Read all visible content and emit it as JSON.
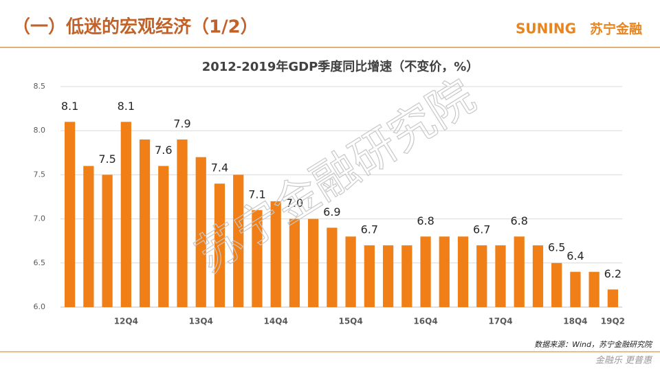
{
  "header": {
    "title": "（一）低迷的宏观经济（1/2）",
    "logo_latin": "SUNING",
    "logo_cn": "苏宁金融"
  },
  "watermark": "苏宁金融研究院",
  "footer": {
    "source": "数据来源：Wind，苏宁金融研究院",
    "slogan": "金融乐 更普惠"
  },
  "chart_data": {
    "type": "bar",
    "title": "2012-2019年GDP季度同比增速（不变价，%）",
    "categories": [
      null,
      null,
      null,
      "12Q4",
      null,
      null,
      null,
      "13Q4",
      null,
      null,
      null,
      "14Q4",
      null,
      null,
      null,
      "15Q4",
      null,
      null,
      null,
      "16Q4",
      null,
      null,
      null,
      "17Q4",
      null,
      null,
      null,
      "18Q4",
      null,
      "19Q2"
    ],
    "values": [
      8.1,
      7.6,
      7.5,
      8.1,
      7.9,
      7.6,
      7.9,
      7.7,
      7.4,
      7.5,
      7.1,
      7.2,
      7.0,
      7.0,
      6.9,
      6.8,
      6.7,
      6.7,
      6.7,
      6.8,
      6.8,
      6.8,
      6.7,
      6.7,
      6.8,
      6.7,
      6.5,
      6.4,
      6.4,
      6.2
    ],
    "value_labels": [
      "8.1",
      null,
      "7.5",
      "8.1",
      null,
      "7.6",
      "7.9",
      null,
      "7.4",
      null,
      "7.1",
      null,
      "7.0",
      null,
      "6.9",
      null,
      "6.7",
      null,
      null,
      "6.8",
      null,
      null,
      "6.7",
      null,
      "6.8",
      null,
      "6.5",
      "6.4",
      null,
      "6.2"
    ],
    "color": "#f07f17",
    "ylim": [
      6.0,
      8.5
    ],
    "yticks": [
      {
        "value": 6.0,
        "label": "6.0"
      },
      6.5,
      {
        "value": 7.0,
        "label": "7.0"
      },
      7.5,
      {
        "value": 8.0,
        "label": "8.0"
      },
      8.5
    ],
    "grid": true
  }
}
